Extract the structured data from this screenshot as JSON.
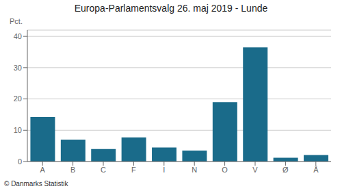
{
  "chart_data": {
    "type": "bar",
    "title": "Europa-Parlamentsvalg 26. maj 2019 - Lunde",
    "categories": [
      "A",
      "B",
      "C",
      "F",
      "I",
      "N",
      "O",
      "V",
      "Ø",
      "Å"
    ],
    "values": [
      14.2,
      7.0,
      4.0,
      7.7,
      4.5,
      3.5,
      19.0,
      36.5,
      1.2,
      2.1
    ],
    "color": "#1a6b8a",
    "ylabel": "Pct.",
    "ylim": [
      0,
      42
    ],
    "yticks": [
      0,
      10,
      20,
      30,
      40
    ],
    "grid": true,
    "annotations": [
      "© Danmarks Statistik"
    ]
  }
}
